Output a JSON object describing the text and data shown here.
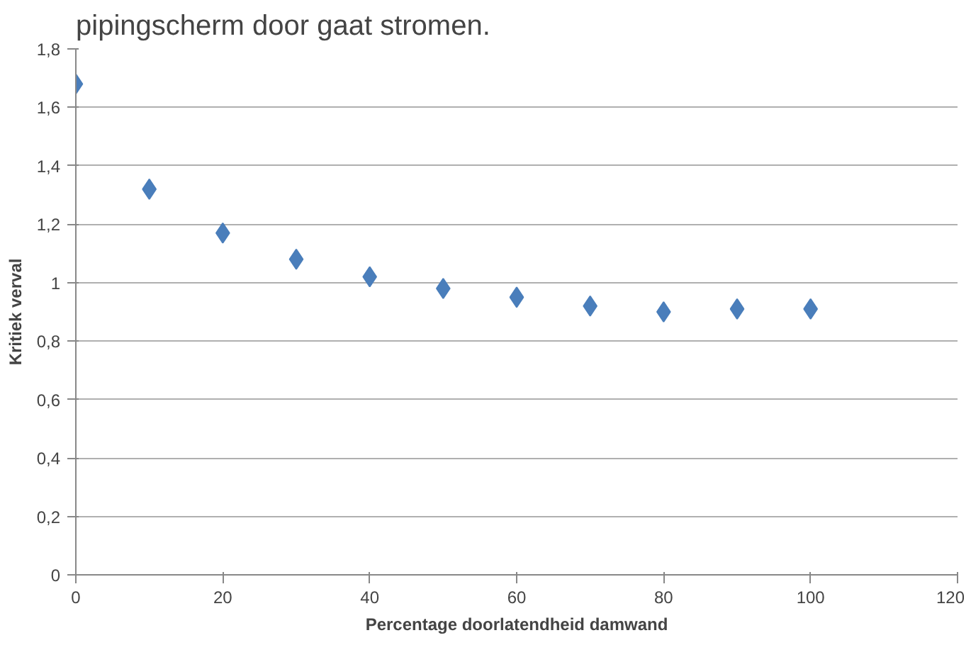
{
  "chart_data": {
    "type": "scatter",
    "title": "pipingscherm door gaat stromen.",
    "xlabel": "Percentage doorlatendheid damwand",
    "ylabel": "Kritiek verval",
    "x": [
      0,
      10,
      20,
      30,
      40,
      50,
      60,
      70,
      80,
      90,
      100
    ],
    "series": [
      {
        "color": "#4a7ebb",
        "values": [
          1.68,
          1.32,
          1.17,
          1.08,
          1.02,
          0.98,
          0.95,
          0.92,
          0.9,
          0.91,
          0.91
        ]
      }
    ],
    "marker": "diamond",
    "grid": "y",
    "xlim": [
      0,
      120
    ],
    "xticks": [
      0,
      20,
      40,
      60,
      80,
      100,
      120
    ],
    "ylim": [
      0,
      1.8
    ],
    "yticks": [
      0,
      {
        "value": 0.2,
        "label": "0,2"
      },
      {
        "value": 0.4,
        "label": "0,4"
      },
      {
        "value": 0.6,
        "label": "0,6"
      },
      {
        "value": 0.8,
        "label": "0,8"
      },
      1,
      {
        "value": 1.2,
        "label": "1,2"
      },
      {
        "value": 1.4,
        "label": "1,4"
      },
      {
        "value": 1.6,
        "label": "1,6"
      },
      {
        "value": 1.8,
        "label": "1,8"
      }
    ]
  }
}
